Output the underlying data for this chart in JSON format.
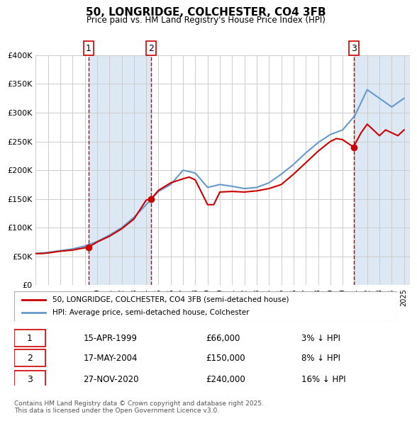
{
  "title": "50, LONGRIDGE, COLCHESTER, CO4 3FB",
  "subtitle": "Price paid vs. HM Land Registry's House Price Index (HPI)",
  "hpi_label": "HPI: Average price, semi-detached house, Colchester",
  "price_label": "50, LONGRIDGE, COLCHESTER, CO4 3FB (semi-detached house)",
  "footer": "Contains HM Land Registry data © Crown copyright and database right 2025.\nThis data is licensed under the Open Government Licence v3.0.",
  "ylim": [
    0,
    400000
  ],
  "yticks": [
    0,
    50000,
    100000,
    150000,
    200000,
    250000,
    300000,
    350000,
    400000
  ],
  "ytick_labels": [
    "£0",
    "£50K",
    "£100K",
    "£150K",
    "£200K",
    "£250K",
    "£300K",
    "£350K",
    "£400K"
  ],
  "xlim_start": 1995.0,
  "xlim_end": 2025.5,
  "sale_dates": [
    1999.29,
    2004.38,
    2020.91
  ],
  "sale_prices": [
    66000,
    150000,
    240000
  ],
  "sale_labels": [
    "1",
    "2",
    "3"
  ],
  "sale_date_strs": [
    "15-APR-1999",
    "17-MAY-2004",
    "27-NOV-2020"
  ],
  "sale_price_strs": [
    "£66,000",
    "£150,000",
    "£240,000"
  ],
  "sale_pct_strs": [
    "3% ↓ HPI",
    "8% ↓ HPI",
    "16% ↓ HPI"
  ],
  "vline_color": "#cc0000",
  "vline_style": "--",
  "sale_marker_color": "#cc0000",
  "hpi_color": "#6699cc",
  "price_color": "#cc0000",
  "bg_shade_color": "#dde8f5",
  "grid_color": "#cccccc",
  "legend_box_color": "#cc0000",
  "hpi_years": [
    1995,
    1996,
    1997,
    1998,
    1999,
    2000,
    2001,
    2002,
    2003,
    2004,
    2005,
    2006,
    2007,
    2008,
    2009,
    2010,
    2011,
    2012,
    2013,
    2014,
    2015,
    2016,
    2017,
    2018,
    2019,
    2020,
    2021,
    2022,
    2023,
    2024,
    2025
  ],
  "hpi_values": [
    55000,
    57000,
    60000,
    63000,
    68000,
    76000,
    87000,
    100000,
    118000,
    140000,
    163000,
    175000,
    200000,
    195000,
    170000,
    175000,
    172000,
    168000,
    170000,
    178000,
    193000,
    210000,
    230000,
    248000,
    262000,
    270000,
    295000,
    340000,
    325000,
    310000,
    325000
  ],
  "price_years": [
    1995,
    1995.5,
    1996,
    1997,
    1998,
    1999,
    1999.3,
    2000,
    2001,
    2002,
    2003,
    2004,
    2004.4,
    2005,
    2006,
    2007,
    2007.5,
    2008,
    2009,
    2009.5,
    2010,
    2011,
    2012,
    2013,
    2014,
    2015,
    2016,
    2017,
    2018,
    2019,
    2019.5,
    2020,
    2020.9,
    2021,
    2021.5,
    2022,
    2023,
    2023.5,
    2024,
    2024.5,
    2025
  ],
  "price_values": [
    55000,
    55000,
    56000,
    59000,
    61000,
    65000,
    66000,
    75000,
    85000,
    98000,
    115000,
    148000,
    150000,
    165000,
    178000,
    185000,
    188000,
    183000,
    140000,
    140000,
    162000,
    163000,
    162000,
    164000,
    168000,
    175000,
    193000,
    213000,
    233000,
    250000,
    255000,
    253000,
    240000,
    245000,
    265000,
    280000,
    260000,
    270000,
    265000,
    260000,
    270000
  ]
}
